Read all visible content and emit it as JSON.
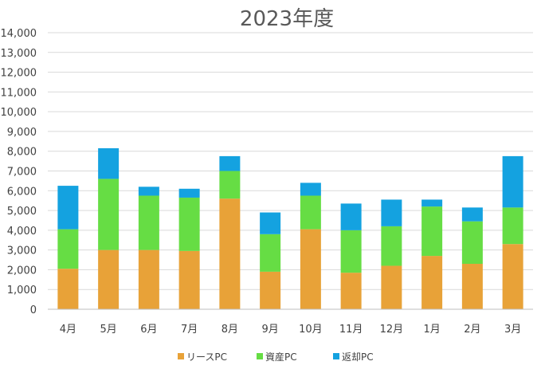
{
  "chart_data": {
    "type": "bar",
    "stacked": true,
    "title": "2023年度",
    "xlabel": "",
    "ylabel": "",
    "categories": [
      "4月",
      "5月",
      "6月",
      "7月",
      "8月",
      "9月",
      "10月",
      "11月",
      "12月",
      "1月",
      "2月",
      "3月"
    ],
    "series": [
      {
        "name": "リースPC",
        "color": "#E8A238",
        "values": [
          2050,
          3000,
          3000,
          2950,
          5600,
          1900,
          4050,
          1850,
          2200,
          2700,
          2300,
          3300
        ]
      },
      {
        "name": "資産PC",
        "color": "#66DD44",
        "values": [
          2000,
          3600,
          2750,
          2700,
          1400,
          1900,
          1700,
          2150,
          2000,
          2500,
          2150,
          1850
        ]
      },
      {
        "name": "返却PC",
        "color": "#14A2E0",
        "values": [
          2200,
          1550,
          450,
          450,
          750,
          1100,
          650,
          1350,
          1350,
          350,
          700,
          2600
        ]
      }
    ],
    "ylim": [
      0,
      14000
    ],
    "ytick_step": 1000,
    "ytick_labels": [
      "0",
      "1,000",
      "2,000",
      "3,000",
      "4,000",
      "5,000",
      "6,000",
      "7,000",
      "8,000",
      "9,000",
      "10,000",
      "11,000",
      "12,000",
      "13,000",
      "14,000"
    ],
    "grid": true,
    "legend_position": "bottom"
  }
}
